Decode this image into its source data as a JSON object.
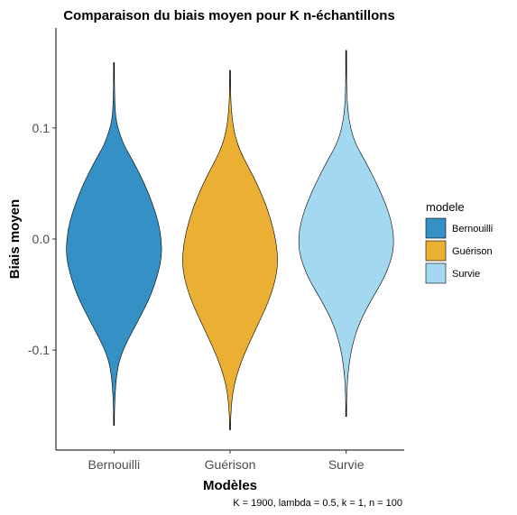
{
  "chart_data": {
    "type": "violin",
    "title": "Comparaison du biais moyen pour K n-échantillons",
    "xlabel": "Modèles",
    "ylabel": "Biais moyen",
    "caption": "K = 1900, lambda = 0.5, k = 1, n = 100",
    "ylim": [
      -0.19,
      0.19
    ],
    "yticks": [
      0.1,
      0.0,
      -0.1
    ],
    "ytick_labels": [
      "0.1",
      "0.0",
      "-0.1"
    ],
    "categories": [
      "Bernouilli",
      "Guérison",
      "Survie"
    ],
    "grid": false,
    "legend": {
      "title": "modele",
      "position": "right",
      "entries": [
        "Bernouilli",
        "Guérison",
        "Survie"
      ]
    },
    "series": [
      {
        "name": "Bernouilli",
        "color": "#3591C5",
        "min": -0.168,
        "max": 0.159,
        "profile": [
          [
            -0.168,
            0.0
          ],
          [
            -0.14,
            0.02
          ],
          [
            -0.12,
            0.06
          ],
          [
            -0.105,
            0.14
          ],
          [
            -0.09,
            0.3
          ],
          [
            -0.07,
            0.55
          ],
          [
            -0.05,
            0.78
          ],
          [
            -0.03,
            0.93
          ],
          [
            -0.015,
            1.0
          ],
          [
            0.0,
            0.99
          ],
          [
            0.015,
            0.93
          ],
          [
            0.03,
            0.82
          ],
          [
            0.05,
            0.64
          ],
          [
            0.07,
            0.4
          ],
          [
            0.085,
            0.2
          ],
          [
            0.1,
            0.08
          ],
          [
            0.11,
            0.035
          ],
          [
            0.125,
            0.015
          ],
          [
            0.159,
            0.0
          ]
        ]
      },
      {
        "name": "Guérison",
        "color": "#EBB033",
        "min": -0.172,
        "max": 0.152,
        "profile": [
          [
            -0.172,
            0.0
          ],
          [
            -0.155,
            0.02
          ],
          [
            -0.14,
            0.05
          ],
          [
            -0.125,
            0.12
          ],
          [
            -0.105,
            0.28
          ],
          [
            -0.08,
            0.55
          ],
          [
            -0.055,
            0.82
          ],
          [
            -0.035,
            0.96
          ],
          [
            -0.02,
            1.0
          ],
          [
            -0.005,
            0.97
          ],
          [
            0.01,
            0.9
          ],
          [
            0.03,
            0.76
          ],
          [
            0.05,
            0.56
          ],
          [
            0.065,
            0.38
          ],
          [
            0.08,
            0.2
          ],
          [
            0.095,
            0.09
          ],
          [
            0.11,
            0.04
          ],
          [
            0.125,
            0.015
          ],
          [
            0.152,
            0.0
          ]
        ]
      },
      {
        "name": "Survie",
        "color": "#A4D8F0",
        "min": -0.16,
        "max": 0.17,
        "profile": [
          [
            -0.16,
            0.0
          ],
          [
            -0.135,
            0.015
          ],
          [
            -0.115,
            0.05
          ],
          [
            -0.095,
            0.13
          ],
          [
            -0.075,
            0.28
          ],
          [
            -0.055,
            0.52
          ],
          [
            -0.035,
            0.8
          ],
          [
            -0.015,
            0.97
          ],
          [
            0.0,
            1.0
          ],
          [
            0.015,
            0.95
          ],
          [
            0.03,
            0.84
          ],
          [
            0.05,
            0.64
          ],
          [
            0.07,
            0.4
          ],
          [
            0.085,
            0.2
          ],
          [
            0.1,
            0.09
          ],
          [
            0.115,
            0.035
          ],
          [
            0.135,
            0.01
          ],
          [
            0.17,
            0.0
          ]
        ]
      }
    ]
  }
}
